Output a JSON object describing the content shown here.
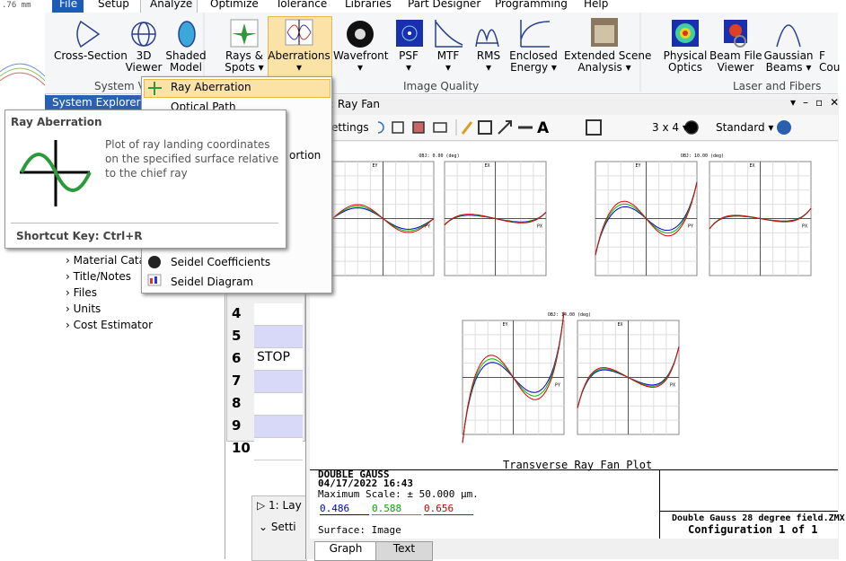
{
  "left_ruler": ".76 mm",
  "menu": [
    "File",
    "Setup",
    "Analyze",
    "Optimize",
    "Tolerance",
    "Libraries",
    "Part Designer",
    "Programming",
    "Help"
  ],
  "ribbon": {
    "buttons": [
      [
        "Cross-Section"
      ],
      [
        "3D",
        "Viewer"
      ],
      [
        "Shaded",
        "Model"
      ],
      [
        "Rays &",
        "Spots"
      ],
      [
        "Aberrations"
      ],
      [
        "Wavefront"
      ],
      [
        "PSF"
      ],
      [
        "MTF"
      ],
      [
        "RMS"
      ],
      [
        "Enclosed",
        "Energy"
      ],
      [
        "Extended Scene",
        "Analysis"
      ],
      [
        "Physical",
        "Optics"
      ],
      [
        "Beam File",
        "Viewer"
      ],
      [
        "Gaussian",
        "Beams"
      ],
      [
        "F",
        "Cou"
      ]
    ],
    "groups": [
      "System Vi",
      "Image Quality",
      "Laser and Fibers"
    ]
  },
  "dropdown": {
    "items": [
      "Ray Aberration",
      "Optical Path",
      "ortion",
      "Seidel Coefficients",
      "Seidel Diagram"
    ]
  },
  "tooltip": {
    "title": "Ray Aberration",
    "description": "Plot of ray landing coordinates on the specified surface relative to the chief ray",
    "shortcut": "Shortcut Key: Ctrl+R"
  },
  "system_explorer": {
    "title": "System Explorer",
    "items": [
      "Material Catalog",
      "Title/Notes",
      "Files",
      "Units",
      "Cost Estimator"
    ]
  },
  "lens_table": {
    "rows": [
      [
        4
      ],
      [
        5
      ],
      [
        6,
        "STOP"
      ],
      [
        7
      ],
      [
        8
      ],
      [
        9
      ],
      [
        10
      ]
    ]
  },
  "ray_fan": {
    "title": ": Ray Fan",
    "toolbar": {
      "settings": "ettings",
      "layout": "3 x 4",
      "style": "Standard"
    },
    "plots": [
      {
        "field": "OBJ: 0.00 (deg)",
        "y_label": "EY",
        "x_label": "PY",
        "x2_label": "EX",
        "x2_axis": "PX"
      },
      {
        "field": "OBJ: 10.00 (deg)",
        "y_label": "EY",
        "x_label": "PY",
        "x2_label": "EX",
        "x2_axis": "PX"
      },
      {
        "field": "OBJ: 14.00 (deg)",
        "y_label": "EY",
        "x_label": "PY",
        "x2_label": "EX",
        "x2_axis": "PX"
      }
    ],
    "plot_title": "Transverse Ray Fan Plot",
    "footer": {
      "name": "DOUBLE GAUSS",
      "date": "04/17/2022 16:43",
      "scale": "Maximum Scale: ± 50.000 µm.",
      "wavelengths": [
        0.486,
        0.588,
        0.656
      ],
      "surface": "Surface: Image",
      "file": "Double Gauss 28 degree field.ZMX",
      "config": "Configuration 1 of 1"
    },
    "tabs": [
      "Graph",
      "Text"
    ]
  },
  "bottom_panel": {
    "tab": "1: Lay",
    "settings": "Setti"
  }
}
